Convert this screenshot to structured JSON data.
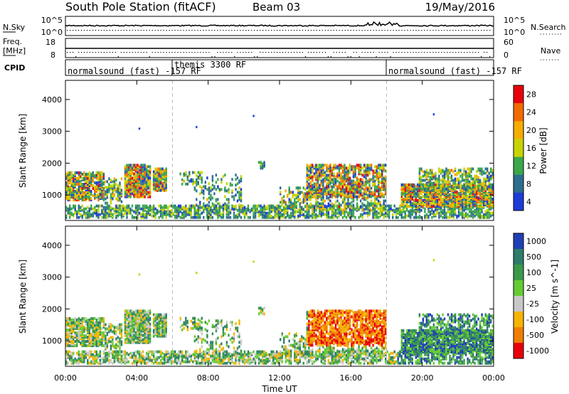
{
  "header": {
    "title": "South Pole Station (fitACF)",
    "beam": "Beam 03",
    "date": "19/May/2016"
  },
  "status_panels": {
    "nsky_label": "N.Sky",
    "nsearch_label": "N.Search",
    "freq_label_1": "Freq.",
    "freq_label_2": "[MHz]",
    "nave_label": "Nave",
    "cpid_label": "CPID",
    "noise_ticks": [
      "10^5",
      "10^0"
    ],
    "freq_ticks": [
      "18",
      "8"
    ],
    "nave_ticks": [
      "60",
      "0"
    ]
  },
  "chart_data": [
    {
      "type": "heatmap",
      "title": "",
      "xlabel": "",
      "ylabel": "Slant Range [km]",
      "colorbar_label": "Power [dB]",
      "colorbar_ticks": [
        "28",
        "24",
        "20",
        "16",
        "12",
        "8",
        "4"
      ],
      "colorbar_colors": [
        "#e8000b",
        "#f36a00",
        "#f4ad00",
        "#c8d400",
        "#3aa84a",
        "#2d6e8f",
        "#1e3bd8"
      ],
      "xlim": [
        "00:00",
        "24:00"
      ],
      "ylim": [
        200,
        4600
      ],
      "y_ticks": [
        1000,
        2000,
        3000,
        4000
      ],
      "x_ticks": [
        "00:00",
        "04:00",
        "08:00",
        "12:00",
        "16:00",
        "20:00",
        "00:00"
      ]
    },
    {
      "type": "heatmap",
      "title": "",
      "xlabel": "Time UT",
      "ylabel": "Slant Range [km]",
      "colorbar_label": "Velocity [m s^-1]",
      "colorbar_ticks": [
        "1000",
        "500",
        "100",
        "25",
        "-25",
        "-100",
        "-500",
        "-1000"
      ],
      "colorbar_colors": [
        "#1f3fb5",
        "#2e7d6b",
        "#3a9a4a",
        "#66cc33",
        "#c8c8c8",
        "#f4b400",
        "#f07f00",
        "#e8000b"
      ],
      "xlim": [
        "00:00",
        "24:00"
      ],
      "ylim": [
        200,
        4600
      ],
      "y_ticks": [
        1000,
        2000,
        3000,
        4000
      ],
      "x_ticks": [
        "00:00",
        "04:00",
        "08:00",
        "12:00",
        "16:00",
        "20:00",
        "00:00"
      ]
    }
  ],
  "cpid_segments": [
    {
      "label": "normalsound (fast) -157 RF",
      "start": "00:00",
      "end": "06:00"
    },
    {
      "label": "themis 3300 RF",
      "start": "06:00",
      "end": "18:00"
    },
    {
      "label": "normalsound (fast) -157 RF",
      "start": "18:00",
      "end": "24:00"
    }
  ]
}
